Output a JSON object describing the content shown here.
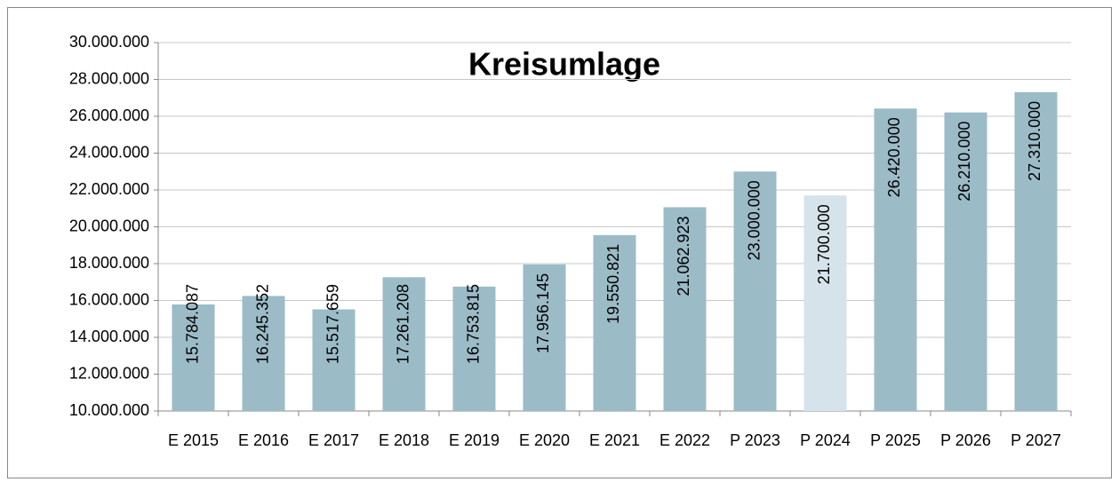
{
  "chart_data": {
    "type": "bar",
    "title": "Kreisumlage",
    "categories": [
      "E 2015",
      "E 2016",
      "E 2017",
      "E 2018",
      "E 2019",
      "E 2020",
      "E 2021",
      "E 2022",
      "P 2023",
      "P 2024",
      "P 2025",
      "P 2026",
      "P 2027"
    ],
    "values": [
      15784087,
      16245352,
      15517659,
      17261208,
      16753815,
      17956145,
      19550821,
      21062923,
      23000000,
      21700000,
      26420000,
      26210000,
      27310000
    ],
    "value_labels": [
      "15.784.087",
      "16.245.352",
      "15.517.659",
      "17.261.208",
      "16.753.815",
      "17.956.145",
      "19.550.821",
      "21.062.923",
      "23.000.000",
      "21.700.000",
      "26.420.000",
      "26.210.000",
      "27.310.000"
    ],
    "colors": [
      "#9bbbc7",
      "#9bbbc7",
      "#9bbbc7",
      "#9bbbc7",
      "#9bbbc7",
      "#9bbbc7",
      "#9bbbc7",
      "#9bbbc7",
      "#9bbbc7",
      "#d6e3ea",
      "#9bbbc7",
      "#9bbbc7",
      "#9bbbc7"
    ],
    "ylim": [
      10000000,
      30000000
    ],
    "yticks": [
      {
        "value": 10000000,
        "label": "10.000.000"
      },
      {
        "value": 12000000,
        "label": "12.000.000"
      },
      {
        "value": 14000000,
        "label": "14.000.000"
      },
      {
        "value": 16000000,
        "label": "16.000.000"
      },
      {
        "value": 18000000,
        "label": "18.000.000"
      },
      {
        "value": 20000000,
        "label": "20.000.000"
      },
      {
        "value": 22000000,
        "label": "22.000.000"
      },
      {
        "value": 24000000,
        "label": "24.000.000"
      },
      {
        "value": 26000000,
        "label": "26.000.000"
      },
      {
        "value": 28000000,
        "label": "28.000.000"
      },
      {
        "value": 30000000,
        "label": "30.000.000"
      }
    ],
    "grid": true
  }
}
